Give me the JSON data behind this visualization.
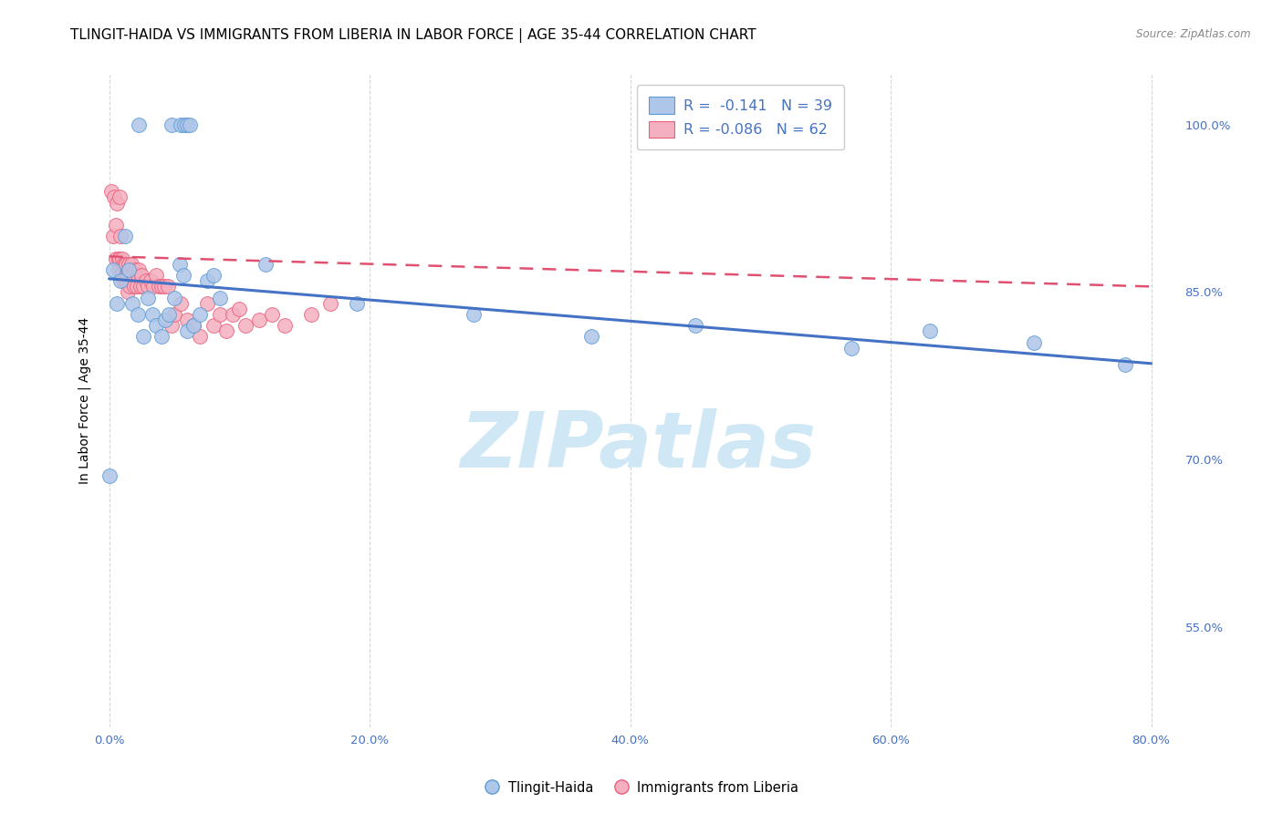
{
  "title": "TLINGIT-HAIDA VS IMMIGRANTS FROM LIBERIA IN LABOR FORCE | AGE 35-44 CORRELATION CHART",
  "source": "Source: ZipAtlas.com",
  "ylabel": "In Labor Force | Age 35-44",
  "xlabel_ticks": [
    "0.0%",
    "20.0%",
    "40.0%",
    "60.0%",
    "80.0%"
  ],
  "xlabel_vals": [
    0.0,
    0.2,
    0.4,
    0.6,
    0.8
  ],
  "ylabel_ticks": [
    "55.0%",
    "70.0%",
    "85.0%",
    "100.0%"
  ],
  "ylabel_vals": [
    0.55,
    0.7,
    0.85,
    1.0
  ],
  "xlim": [
    -0.008,
    0.82
  ],
  "ylim": [
    0.46,
    1.045
  ],
  "tlingit_R": -0.141,
  "tlingit_N": 39,
  "liberia_R": -0.086,
  "liberia_N": 62,
  "tlingit_color": "#aec6e8",
  "liberia_color": "#f4afc0",
  "tlingit_edge_color": "#5b9bd5",
  "liberia_edge_color": "#e8607a",
  "tlingit_line_color": "#4472c4",
  "liberia_line_color": "#e05070",
  "watermark_text": "ZIPatlas",
  "watermark_color": "#d0e8f5",
  "grid_color": "#cccccc",
  "bg_color": "#ffffff",
  "axis_color": "#4472c4",
  "title_fontsize": 11,
  "label_fontsize": 10,
  "tick_fontsize": 9.5,
  "tlingit_x": [
    0.023,
    0.048,
    0.055,
    0.058,
    0.06,
    0.062,
    0.0,
    0.003,
    0.006,
    0.009,
    0.012,
    0.015,
    0.018,
    0.022,
    0.026,
    0.03,
    0.033,
    0.036,
    0.04,
    0.043,
    0.046,
    0.05,
    0.054,
    0.057,
    0.06,
    0.065,
    0.07,
    0.075,
    0.08,
    0.085,
    0.12,
    0.19,
    0.28,
    0.37,
    0.45,
    0.57,
    0.63,
    0.71,
    0.78
  ],
  "tlingit_y": [
    1.0,
    1.0,
    1.0,
    1.0,
    1.0,
    1.0,
    0.685,
    0.87,
    0.84,
    0.86,
    0.9,
    0.87,
    0.84,
    0.83,
    0.81,
    0.845,
    0.83,
    0.82,
    0.81,
    0.825,
    0.83,
    0.845,
    0.875,
    0.865,
    0.815,
    0.82,
    0.83,
    0.86,
    0.865,
    0.845,
    0.875,
    0.84,
    0.83,
    0.81,
    0.82,
    0.8,
    0.815,
    0.805,
    0.785
  ],
  "liberia_x": [
    0.002,
    0.003,
    0.004,
    0.005,
    0.005,
    0.006,
    0.007,
    0.007,
    0.008,
    0.008,
    0.009,
    0.01,
    0.01,
    0.011,
    0.011,
    0.012,
    0.012,
    0.013,
    0.013,
    0.014,
    0.014,
    0.015,
    0.015,
    0.016,
    0.016,
    0.017,
    0.018,
    0.019,
    0.02,
    0.021,
    0.022,
    0.023,
    0.024,
    0.025,
    0.026,
    0.028,
    0.03,
    0.032,
    0.034,
    0.036,
    0.038,
    0.04,
    0.042,
    0.045,
    0.048,
    0.05,
    0.055,
    0.06,
    0.065,
    0.07,
    0.075,
    0.08,
    0.085,
    0.09,
    0.095,
    0.1,
    0.105,
    0.115,
    0.125,
    0.135,
    0.155,
    0.17
  ],
  "liberia_y": [
    0.94,
    0.9,
    0.935,
    0.91,
    0.88,
    0.93,
    0.88,
    0.87,
    0.935,
    0.88,
    0.9,
    0.88,
    0.87,
    0.875,
    0.86,
    0.875,
    0.86,
    0.875,
    0.86,
    0.865,
    0.85,
    0.875,
    0.86,
    0.87,
    0.855,
    0.875,
    0.865,
    0.855,
    0.87,
    0.855,
    0.865,
    0.87,
    0.855,
    0.865,
    0.855,
    0.86,
    0.855,
    0.86,
    0.855,
    0.865,
    0.855,
    0.855,
    0.855,
    0.855,
    0.82,
    0.83,
    0.84,
    0.825,
    0.82,
    0.81,
    0.84,
    0.82,
    0.83,
    0.815,
    0.83,
    0.835,
    0.82,
    0.825,
    0.83,
    0.82,
    0.83,
    0.84
  ],
  "tlingit_line_x0": 0.0,
  "tlingit_line_x1": 0.8,
  "tlingit_line_y0": 0.862,
  "tlingit_line_y1": 0.786,
  "liberia_line_x0": 0.0,
  "liberia_line_x1": 0.8,
  "liberia_line_y0": 0.882,
  "liberia_line_y1": 0.855
}
